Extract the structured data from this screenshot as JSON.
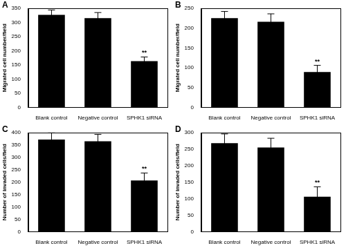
{
  "chart_data": [
    {
      "type": "bar",
      "panel_label": "A",
      "y_label": "Migrated cell number/field",
      "categories": [
        "Blank control",
        "Negative control",
        "SPHK1 siRNA"
      ],
      "values": [
        327,
        315,
        163
      ],
      "errors": [
        17,
        20,
        15
      ],
      "color": "#000000",
      "annotations": [
        {
          "category": "SPHK1 siRNA",
          "text": "**"
        }
      ],
      "ylim": [
        0,
        350
      ],
      "yticks": [
        0,
        50,
        100,
        150,
        200,
        250,
        300,
        350
      ],
      "grid": false
    },
    {
      "type": "bar",
      "panel_label": "B",
      "y_label": "Migrated cell number/field",
      "categories": [
        "Blank control",
        "Negative control",
        "SPHK1 siRNA"
      ],
      "values": [
        225,
        216,
        89
      ],
      "errors": [
        17,
        20,
        17
      ],
      "color": "#000000",
      "annotations": [
        {
          "category": "SPHK1 siRNA",
          "text": "**"
        }
      ],
      "ylim": [
        0,
        250
      ],
      "yticks": [
        0,
        50,
        100,
        150,
        200,
        250
      ],
      "grid": false
    },
    {
      "type": "bar",
      "panel_label": "C",
      "y_label": "Number of invaded cells/field",
      "categories": [
        "Blank control",
        "Negative control",
        "SPHK1 siRNA"
      ],
      "values": [
        372,
        365,
        207
      ],
      "errors": [
        27,
        28,
        30
      ],
      "color": "#000000",
      "annotations": [
        {
          "category": "SPHK1 siRNA",
          "text": "**"
        }
      ],
      "ylim": [
        0,
        400
      ],
      "yticks": [
        0,
        50,
        100,
        150,
        200,
        250,
        300,
        350,
        400
      ],
      "grid": false
    },
    {
      "type": "bar",
      "panel_label": "D",
      "y_label": "Number of invaded cells/field",
      "categories": [
        "Blank control",
        "Negative control",
        "SPHK1 siRNA"
      ],
      "values": [
        268,
        255,
        106
      ],
      "errors": [
        28,
        28,
        30
      ],
      "color": "#000000",
      "annotations": [
        {
          "category": "SPHK1 siRNA",
          "text": "**"
        }
      ],
      "ylim": [
        0,
        300
      ],
      "yticks": [
        0,
        50,
        100,
        150,
        200,
        250,
        300
      ],
      "grid": false
    }
  ]
}
